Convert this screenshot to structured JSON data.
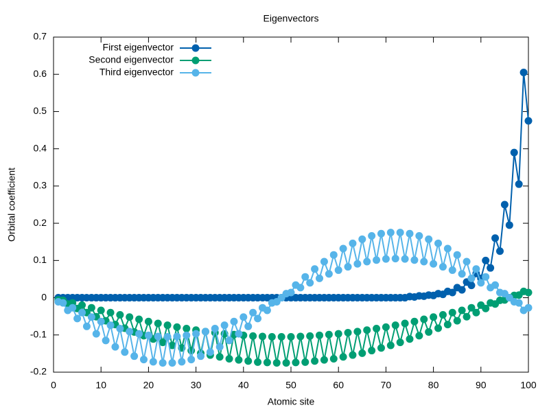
{
  "chart_data": {
    "type": "line",
    "title": "Eigenvectors",
    "x_label": "Atomic site",
    "y_label": "Orbital coefficient",
    "x": [
      1,
      2,
      3,
      4,
      5,
      6,
      7,
      8,
      9,
      10,
      11,
      12,
      13,
      14,
      15,
      16,
      17,
      18,
      19,
      20,
      21,
      22,
      23,
      24,
      25,
      26,
      27,
      28,
      29,
      30,
      31,
      32,
      33,
      34,
      35,
      36,
      37,
      38,
      39,
      40,
      41,
      42,
      43,
      44,
      45,
      46,
      47,
      48,
      49,
      50,
      51,
      52,
      53,
      54,
      55,
      56,
      57,
      58,
      59,
      60,
      61,
      62,
      63,
      64,
      65,
      66,
      67,
      68,
      69,
      70,
      71,
      72,
      73,
      74,
      75,
      76,
      77,
      78,
      79,
      80,
      81,
      82,
      83,
      84,
      85,
      86,
      87,
      88,
      89,
      90,
      91,
      92,
      93,
      94,
      95,
      96,
      97,
      98,
      99,
      100
    ],
    "series": [
      {
        "name": "First eigenvector",
        "color": "#0060ad",
        "values": [
          0,
          0,
          0,
          0,
          0,
          0,
          0,
          0,
          0,
          0,
          0,
          0,
          0,
          0,
          0,
          0,
          0,
          0,
          0,
          0,
          0,
          0,
          0,
          0,
          0,
          0,
          0,
          0,
          0,
          0,
          0,
          0,
          0,
          0,
          0,
          0,
          0,
          0,
          0,
          0,
          0,
          0,
          0,
          0,
          0,
          0,
          0,
          0,
          0,
          0,
          0,
          0,
          0,
          0,
          0,
          0,
          0,
          0,
          0,
          0,
          0,
          0,
          0,
          0,
          0,
          0,
          0,
          0,
          0,
          0,
          0,
          0,
          0,
          0,
          0.003,
          0.002,
          0.005,
          0.004,
          0.007,
          0.006,
          0.011,
          0.009,
          0.017,
          0.014,
          0.027,
          0.021,
          0.042,
          0.033,
          0.065,
          0.052,
          0.1,
          0.08,
          0.16,
          0.125,
          0.25,
          0.195,
          0.39,
          0.305,
          0.605,
          0.475
        ]
      },
      {
        "name": "Second eigenvector",
        "color": "#009e73",
        "values": [
          -0.006,
          -0.007,
          -0.017,
          -0.014,
          -0.029,
          -0.02,
          -0.04,
          -0.027,
          -0.051,
          -0.034,
          -0.062,
          -0.04,
          -0.072,
          -0.046,
          -0.082,
          -0.052,
          -0.092,
          -0.058,
          -0.102,
          -0.064,
          -0.111,
          -0.069,
          -0.12,
          -0.074,
          -0.128,
          -0.079,
          -0.135,
          -0.083,
          -0.142,
          -0.087,
          -0.149,
          -0.091,
          -0.154,
          -0.094,
          -0.159,
          -0.097,
          -0.164,
          -0.099,
          -0.167,
          -0.101,
          -0.17,
          -0.103,
          -0.173,
          -0.104,
          -0.174,
          -0.105,
          -0.175,
          -0.105,
          -0.175,
          -0.105,
          -0.174,
          -0.104,
          -0.173,
          -0.103,
          -0.17,
          -0.101,
          -0.167,
          -0.099,
          -0.164,
          -0.097,
          -0.159,
          -0.094,
          -0.154,
          -0.091,
          -0.149,
          -0.087,
          -0.142,
          -0.083,
          -0.135,
          -0.079,
          -0.128,
          -0.074,
          -0.12,
          -0.069,
          -0.111,
          -0.064,
          -0.102,
          -0.058,
          -0.092,
          -0.052,
          -0.082,
          -0.046,
          -0.072,
          -0.04,
          -0.062,
          -0.034,
          -0.051,
          -0.027,
          -0.04,
          -0.02,
          -0.029,
          -0.014,
          -0.017,
          -0.007,
          -0.006,
          0,
          0.006,
          0.007,
          0.017,
          0.014
        ]
      },
      {
        "name": "Third eigenvector",
        "color": "#56b4e9",
        "values": [
          -0.011,
          -0.014,
          -0.034,
          -0.027,
          -0.056,
          -0.04,
          -0.077,
          -0.052,
          -0.097,
          -0.064,
          -0.115,
          -0.074,
          -0.132,
          -0.083,
          -0.146,
          -0.091,
          -0.157,
          -0.097,
          -0.166,
          -0.101,
          -0.172,
          -0.104,
          -0.175,
          -0.105,
          -0.175,
          -0.104,
          -0.172,
          -0.101,
          -0.166,
          -0.097,
          -0.157,
          -0.091,
          -0.146,
          -0.083,
          -0.132,
          -0.074,
          -0.115,
          -0.064,
          -0.097,
          -0.052,
          -0.077,
          -0.04,
          -0.056,
          -0.027,
          -0.034,
          -0.014,
          -0.011,
          0,
          0.011,
          0.014,
          0.034,
          0.027,
          0.056,
          0.04,
          0.077,
          0.052,
          0.097,
          0.064,
          0.115,
          0.074,
          0.132,
          0.083,
          0.146,
          0.091,
          0.157,
          0.097,
          0.166,
          0.101,
          0.172,
          0.104,
          0.175,
          0.105,
          0.175,
          0.104,
          0.172,
          0.101,
          0.166,
          0.097,
          0.157,
          0.091,
          0.146,
          0.083,
          0.132,
          0.074,
          0.115,
          0.064,
          0.097,
          0.052,
          0.077,
          0.04,
          0.056,
          0.027,
          0.034,
          0.014,
          0.011,
          0,
          -0.011,
          -0.014,
          -0.034,
          -0.027
        ]
      }
    ],
    "xlim": [
      0,
      100
    ],
    "xticks": [
      0,
      10,
      20,
      30,
      40,
      50,
      60,
      70,
      80,
      90,
      100
    ],
    "ylim": [
      -0.2,
      0.7
    ],
    "yticks": [
      -0.2,
      -0.1,
      0,
      0.1,
      0.2,
      0.3,
      0.4,
      0.5,
      0.6,
      0.7
    ],
    "grid": false,
    "legend": "top-left"
  }
}
